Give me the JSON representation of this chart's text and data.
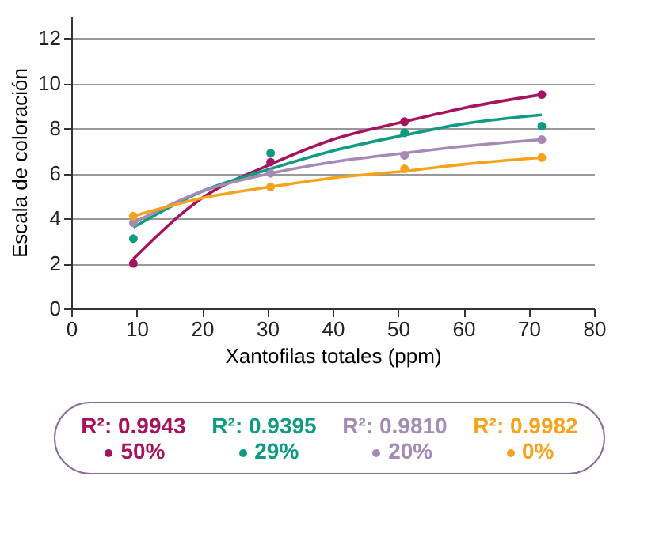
{
  "chart_data": {
    "type": "scatter",
    "xlabel": "Xantofilas totales (ppm)",
    "ylabel": "Escala de coloración",
    "xlim": [
      0,
      80
    ],
    "xticks": [
      0,
      10,
      20,
      30,
      40,
      50,
      60,
      70,
      80
    ],
    "ylim": [
      0,
      13
    ],
    "yticks": [
      0,
      2,
      4,
      6,
      8,
      10,
      12
    ],
    "grid": "y",
    "legend": "bottom",
    "marker": "circle",
    "annotations": [
      "R²: 0.9943",
      "R²: 0.9395",
      "R²: 0.9810",
      "R²: 0.9982"
    ],
    "series": [
      {
        "name": "50%",
        "color": "#a5125e",
        "x": [
          9.5,
          30.5,
          51,
          72
        ],
        "values": [
          2.0,
          6.5,
          8.3,
          9.5
        ]
      },
      {
        "name": "29%",
        "color": "#0f9a82",
        "x": [
          9.5,
          30.5,
          51,
          72
        ],
        "values": [
          3.1,
          6.9,
          7.8,
          8.1
        ]
      },
      {
        "name": "20%",
        "color": "#a48ab5",
        "x": [
          9.5,
          30.5,
          51,
          72
        ],
        "values": [
          3.8,
          6.0,
          6.8,
          7.5
        ]
      },
      {
        "name": "0%",
        "color": "#f7a21b",
        "x": [
          9.5,
          30.5,
          51,
          72
        ],
        "values": [
          4.1,
          5.4,
          6.2,
          6.7
        ]
      },
      {
        "type": "line",
        "marker": "none",
        "color": "#a5125e",
        "line_style": "solid",
        "x": [
          9.5,
          20,
          30.5,
          40,
          51,
          60,
          72
        ],
        "values": [
          2.2,
          4.9,
          6.4,
          7.5,
          8.3,
          8.9,
          9.5
        ]
      },
      {
        "type": "line",
        "marker": "none",
        "color": "#0f9a82",
        "line_style": "solid",
        "x": [
          9.5,
          20,
          30.5,
          40,
          51,
          60,
          72
        ],
        "values": [
          3.6,
          5.2,
          6.2,
          7.0,
          7.7,
          8.2,
          8.6
        ]
      },
      {
        "type": "line",
        "marker": "none",
        "color": "#a48ab5",
        "line_style": "solid",
        "x": [
          9.5,
          20,
          30.5,
          40,
          51,
          60,
          72
        ],
        "values": [
          3.8,
          5.2,
          6.0,
          6.5,
          6.9,
          7.2,
          7.5
        ]
      },
      {
        "type": "line",
        "marker": "none",
        "color": "#f7a21b",
        "line_style": "solid",
        "x": [
          9.5,
          20,
          30.5,
          40,
          51,
          60,
          72
        ],
        "values": [
          4.1,
          4.9,
          5.4,
          5.8,
          6.1,
          6.4,
          6.7
        ]
      }
    ]
  }
}
